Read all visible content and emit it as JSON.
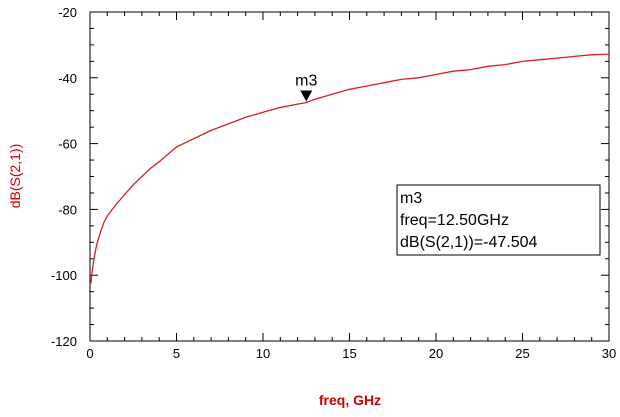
{
  "chart_data": {
    "type": "line",
    "title": "",
    "xlabel": "freq, GHz",
    "ylabel": "dB(S(2,1))",
    "xlim": [
      0,
      30
    ],
    "ylim": [
      -120,
      -20
    ],
    "x_ticks": [
      "0",
      "5",
      "10",
      "15",
      "20",
      "25",
      "30"
    ],
    "y_ticks": [
      "-20",
      "-40",
      "-60",
      "-80",
      "-100",
      "-120"
    ],
    "grid": false,
    "series": [
      {
        "x": [
          0.05,
          0.1,
          0.2,
          0.3,
          0.4,
          0.6,
          0.8,
          1.0,
          1.5,
          2.0,
          2.5,
          3.0,
          3.5,
          4.0,
          5.0,
          6.0,
          7.0,
          8.0,
          9.0,
          10.0,
          11.0,
          12.0,
          12.5,
          13.0,
          14.0,
          15.0,
          16.0,
          17.0,
          18.0,
          19.0,
          20.0,
          21.0,
          22.0,
          23.0,
          24.0,
          25.0,
          26.0,
          27.0,
          28.0,
          29.0,
          30.0
        ],
        "values": [
          -102.5,
          -100.0,
          -96.0,
          -93.0,
          -90.5,
          -87.0,
          -84.0,
          -82.0,
          -78.5,
          -75.5,
          -72.5,
          -70.0,
          -67.5,
          -65.5,
          -61.0,
          -58.5,
          -56.0,
          -54.0,
          -52.0,
          -50.5,
          -49.0,
          -48.0,
          -47.5,
          -46.5,
          -45.0,
          -43.5,
          -42.5,
          -41.5,
          -40.5,
          -40.0,
          -39.0,
          -38.0,
          -37.5,
          -36.5,
          -36.0,
          -35.0,
          -34.5,
          -34.0,
          -33.5,
          -33.0,
          -32.8
        ]
      }
    ],
    "line_color": "#d42020",
    "axis_label_color": "#cc0000",
    "marker": {
      "name": "m3",
      "x": 12.5,
      "y": -47.504,
      "readout_lines": [
        "m3",
        "freq=12.50GHz",
        "dB(S(2,1))=-47.504"
      ]
    }
  }
}
